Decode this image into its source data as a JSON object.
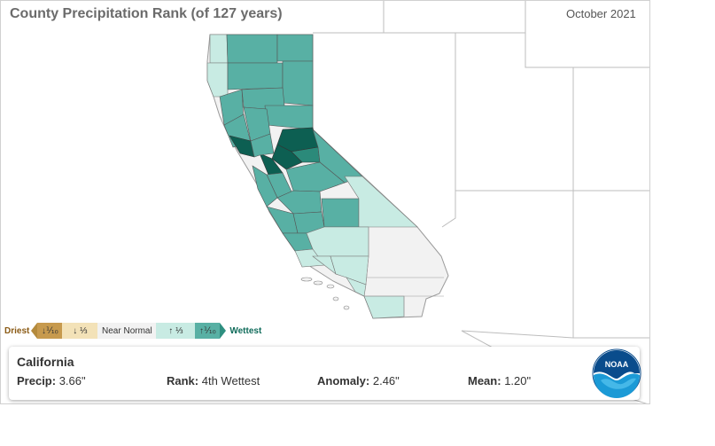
{
  "title": "County Precipitation Rank (of 127 years)",
  "period": "October 2021",
  "legend": {
    "driest": "Driest",
    "box1": "↓⅒",
    "box2": "↓ ⅓",
    "near": "Near Normal",
    "box4": "↑ ⅓",
    "box5": "↑⅒",
    "wettest": "Wettest"
  },
  "colors": {
    "driest_tenth": "#c79a4e",
    "below_third": "#f3e2b8",
    "near_normal": "#f2f2f2",
    "above_third": "#c8ebe3",
    "wettest_tenth": "#58b0a4",
    "record_wettest": "#2b8a7a",
    "very_wettest": "#0d5f52"
  },
  "info": {
    "state": "California",
    "precip_label": "Precip:",
    "precip_value": "3.66\"",
    "rank_label": "Rank:",
    "rank_value": "4th Wettest",
    "anomaly_label": "Anomaly:",
    "anomaly_value": "2.46\"",
    "mean_label": "Mean:",
    "mean_value": "1.20\""
  },
  "logo": {
    "text": "NOAA",
    "icon": "noaa-logo-icon"
  }
}
